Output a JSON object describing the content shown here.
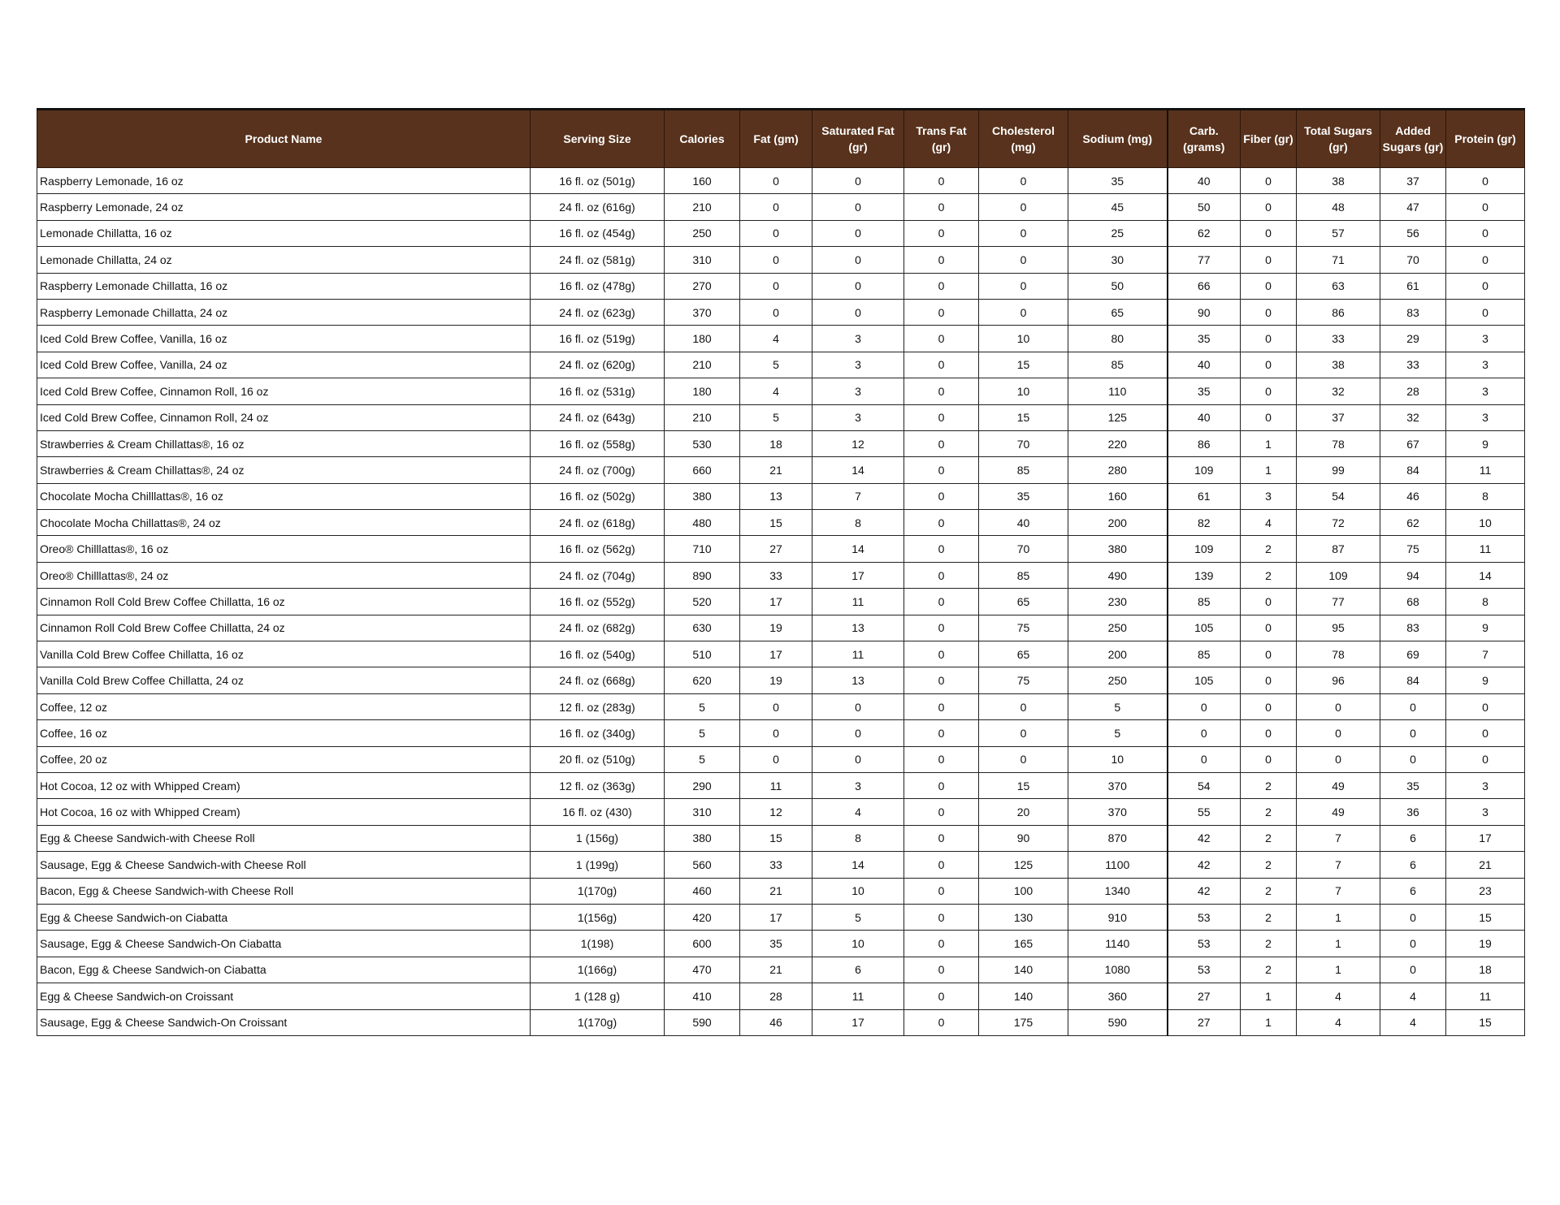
{
  "colors": {
    "header_bg": "#58321c",
    "header_text": "#ffffff"
  },
  "headers": [
    "Product Name",
    "Serving Size",
    "Calories",
    "Fat (gm)",
    "Saturated Fat (gr)",
    "Trans Fat (gr)",
    "Cholesterol (mg)",
    "Sodium (mg)",
    "Carb. (grams)",
    "Fiber (gr)",
    "Total Sugars (gr)",
    "Added Sugars (gr)",
    "Protein (gr)"
  ],
  "rows": [
    [
      "Raspberry Lemonade, 16 oz",
      "16 fl. oz (501g)",
      "160",
      "0",
      "0",
      "0",
      "0",
      "35",
      "40",
      "0",
      "38",
      "37",
      "0"
    ],
    [
      "Raspberry Lemonade, 24 oz",
      "24 fl. oz (616g)",
      "210",
      "0",
      "0",
      "0",
      "0",
      "45",
      "50",
      "0",
      "48",
      "47",
      "0"
    ],
    [
      "Lemonade Chillatta, 16 oz",
      "16 fl. oz (454g)",
      "250",
      "0",
      "0",
      "0",
      "0",
      "25",
      "62",
      "0",
      "57",
      "56",
      "0"
    ],
    [
      "Lemonade Chillatta, 24 oz",
      "24 fl. oz (581g)",
      "310",
      "0",
      "0",
      "0",
      "0",
      "30",
      "77",
      "0",
      "71",
      "70",
      "0"
    ],
    [
      "Raspberry Lemonade Chillatta, 16 oz",
      "16 fl. oz (478g)",
      "270",
      "0",
      "0",
      "0",
      "0",
      "50",
      "66",
      "0",
      "63",
      "61",
      "0"
    ],
    [
      "Raspberry Lemonade Chillatta, 24 oz",
      "24 fl. oz (623g)",
      "370",
      "0",
      "0",
      "0",
      "0",
      "65",
      "90",
      "0",
      "86",
      "83",
      "0"
    ],
    [
      "Iced Cold Brew Coffee, Vanilla, 16 oz",
      "16 fl. oz (519g)",
      "180",
      "4",
      "3",
      "0",
      "10",
      "80",
      "35",
      "0",
      "33",
      "29",
      "3"
    ],
    [
      "Iced Cold Brew Coffee,  Vanilla, 24 oz",
      "24 fl. oz (620g)",
      "210",
      "5",
      "3",
      "0",
      "15",
      "85",
      "40",
      "0",
      "38",
      "33",
      "3"
    ],
    [
      "Iced Cold Brew Coffee, Cinnamon Roll, 16 oz",
      "16 fl. oz (531g)",
      "180",
      "4",
      "3",
      "0",
      "10",
      "110",
      "35",
      "0",
      "32",
      "28",
      "3"
    ],
    [
      "Iced Cold Brew Coffee, Cinnamon Roll, 24 oz",
      "24 fl. oz (643g)",
      "210",
      "5",
      "3",
      "0",
      "15",
      "125",
      "40",
      "0",
      "37",
      "32",
      "3"
    ],
    [
      "Strawberries & Cream Chillattas®, 16 oz",
      "16 fl. oz (558g)",
      "530",
      "18",
      "12",
      "0",
      "70",
      "220",
      "86",
      "1",
      "78",
      "67",
      "9"
    ],
    [
      "Strawberries & Cream Chillattas®, 24 oz",
      "24 fl. oz (700g)",
      "660",
      "21",
      "14",
      "0",
      "85",
      "280",
      "109",
      "1",
      "99",
      "84",
      "11"
    ],
    [
      "Chocolate Mocha Chilllattas®, 16 oz",
      "16 fl. oz (502g)",
      "380",
      "13",
      "7",
      "0",
      "35",
      "160",
      "61",
      "3",
      "54",
      "46",
      "8"
    ],
    [
      "Chocolate Mocha Chillattas®, 24 oz",
      "24 fl. oz (618g)",
      "480",
      "15",
      "8",
      "0",
      "40",
      "200",
      "82",
      "4",
      "72",
      "62",
      "10"
    ],
    [
      "Oreo® Chilllattas®, 16 oz",
      "16 fl. oz (562g)",
      "710",
      "27",
      "14",
      "0",
      "70",
      "380",
      "109",
      "2",
      "87",
      "75",
      "11"
    ],
    [
      "Oreo® Chilllattas®, 24 oz",
      "24 fl. oz (704g)",
      "890",
      "33",
      "17",
      "0",
      "85",
      "490",
      "139",
      "2",
      "109",
      "94",
      "14"
    ],
    [
      "Cinnamon Roll Cold Brew Coffee Chillatta, 16 oz",
      "16 fl. oz (552g)",
      "520",
      "17",
      "11",
      "0",
      "65",
      "230",
      "85",
      "0",
      "77",
      "68",
      "8"
    ],
    [
      "Cinnamon Roll Cold Brew Coffee Chillatta, 24 oz",
      "24 fl. oz (682g)",
      "630",
      "19",
      "13",
      "0",
      "75",
      "250",
      "105",
      "0",
      "95",
      "83",
      "9"
    ],
    [
      "Vanilla Cold Brew Coffee Chillatta, 16 oz",
      "16 fl. oz (540g)",
      "510",
      "17",
      "11",
      "0",
      "65",
      "200",
      "85",
      "0",
      "78",
      "69",
      "7"
    ],
    [
      "Vanilla Cold Brew Coffee Chillatta, 24 oz",
      "24 fl. oz (668g)",
      "620",
      "19",
      "13",
      "0",
      "75",
      "250",
      "105",
      "0",
      "96",
      "84",
      "9"
    ],
    [
      "Coffee, 12 oz",
      "12 fl. oz (283g)",
      "5",
      "0",
      "0",
      "0",
      "0",
      "5",
      "0",
      "0",
      "0",
      "0",
      "0"
    ],
    [
      "Coffee, 16 oz",
      "16 fl. oz (340g)",
      "5",
      "0",
      "0",
      "0",
      "0",
      "5",
      "0",
      "0",
      "0",
      "0",
      "0"
    ],
    [
      "Coffee, 20 oz",
      "20 fl. oz (510g)",
      "5",
      "0",
      "0",
      "0",
      "0",
      "10",
      "0",
      "0",
      "0",
      "0",
      "0"
    ],
    [
      "Hot Cocoa, 12 oz with Whipped Cream)",
      "12 fl. oz (363g)",
      "290",
      "11",
      "3",
      "0",
      "15",
      "370",
      "54",
      "2",
      "49",
      "35",
      "3"
    ],
    [
      "Hot Cocoa, 16 oz with  Whipped Cream)",
      "16 fl. oz (430)",
      "310",
      "12",
      "4",
      "0",
      "20",
      "370",
      "55",
      "2",
      "49",
      "36",
      "3"
    ],
    [
      "Egg & Cheese Sandwich-with Cheese Roll",
      "1 (156g)",
      "380",
      "15",
      "8",
      "0",
      "90",
      "870",
      "42",
      "2",
      "7",
      "6",
      "17"
    ],
    [
      "Sausage, Egg & Cheese Sandwich-with Cheese Roll",
      "1 (199g)",
      "560",
      "33",
      "14",
      "0",
      "125",
      "1100",
      "42",
      "2",
      "7",
      "6",
      "21"
    ],
    [
      "Bacon, Egg & Cheese Sandwich-with Cheese Roll",
      "1(170g)",
      "460",
      "21",
      "10",
      "0",
      "100",
      "1340",
      "42",
      "2",
      "7",
      "6",
      "23"
    ],
    [
      "Egg & Cheese Sandwich-on Ciabatta",
      "1(156g)",
      "420",
      "17",
      "5",
      "0",
      "130",
      "910",
      "53",
      "2",
      "1",
      "0",
      "15"
    ],
    [
      "Sausage, Egg & Cheese Sandwich-On Ciabatta",
      "1(198)",
      "600",
      "35",
      "10",
      "0",
      "165",
      "1140",
      "53",
      "2",
      "1",
      "0",
      "19"
    ],
    [
      "Bacon, Egg & Cheese Sandwich-on Ciabatta",
      "1(166g)",
      "470",
      "21",
      "6",
      "0",
      "140",
      "1080",
      "53",
      "2",
      "1",
      "0",
      "18"
    ],
    [
      "Egg & Cheese Sandwich-on Croissant",
      "1 (128 g)",
      "410",
      "28",
      "11",
      "0",
      "140",
      "360",
      "27",
      "1",
      "4",
      "4",
      "11"
    ],
    [
      "Sausage, Egg & Cheese Sandwich-On Croissant",
      "1(170g)",
      "590",
      "46",
      "17",
      "0",
      "175",
      "590",
      "27",
      "1",
      "4",
      "4",
      "15"
    ]
  ]
}
